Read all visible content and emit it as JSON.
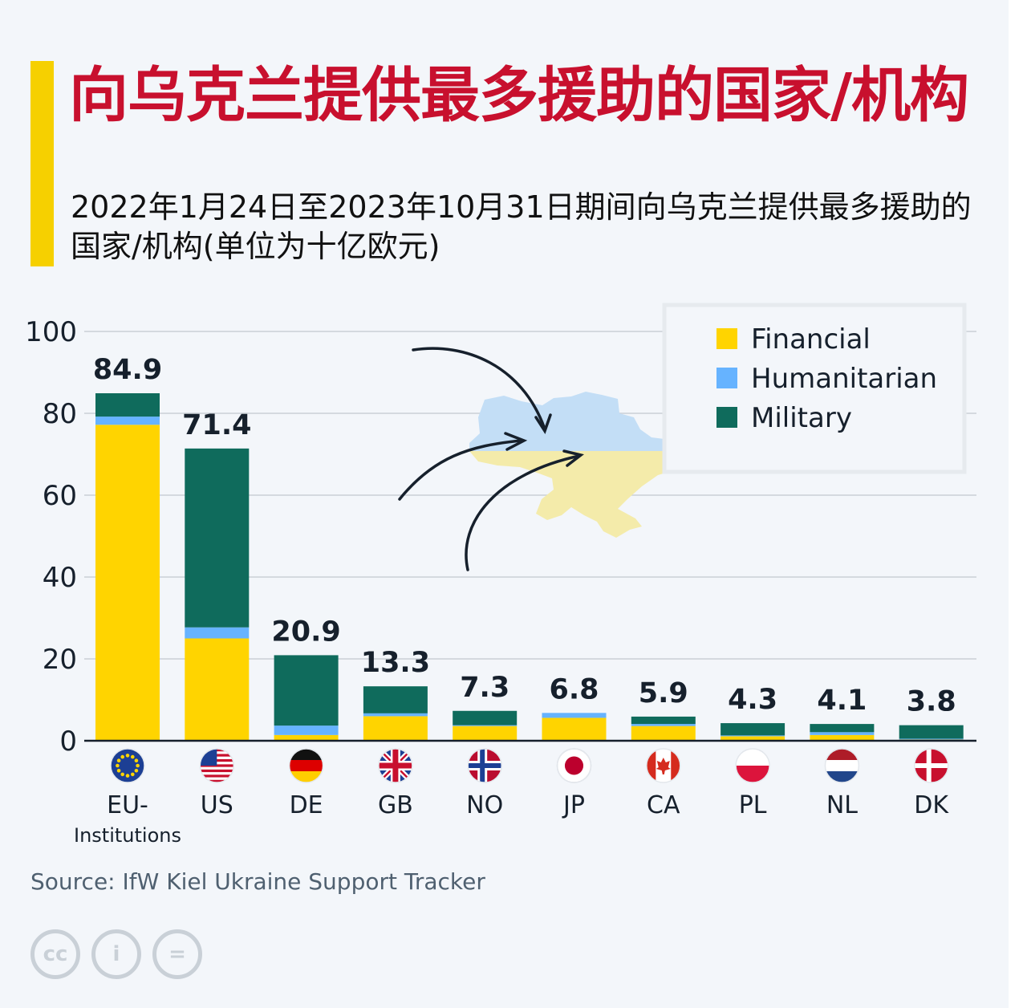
{
  "header": {
    "title": "向乌克兰提供最多援助的国家/机构",
    "subtitle": "2022年1月24日至2023年10月31日期间向乌克兰提供最多援助的国家/机构(单位为十亿欧元)"
  },
  "chart_data": {
    "type": "bar",
    "stacked": true,
    "categories": [
      "EU-Institutions",
      "US",
      "DE",
      "GB",
      "NO",
      "JP",
      "CA",
      "PL",
      "NL",
      "DK"
    ],
    "category_labels": [
      [
        "EU-",
        "Institutions"
      ],
      [
        "US"
      ],
      [
        "DE"
      ],
      [
        "GB"
      ],
      [
        "NO"
      ],
      [
        "JP"
      ],
      [
        "CA"
      ],
      [
        "PL"
      ],
      [
        "NL"
      ],
      [
        "DK"
      ]
    ],
    "flags": [
      "eu-flag-icon",
      "us-flag-icon",
      "de-flag-icon",
      "gb-flag-icon",
      "no-flag-icon",
      "jp-flag-icon",
      "ca-flag-icon",
      "pl-flag-icon",
      "nl-flag-icon",
      "dk-flag-icon"
    ],
    "totals": [
      84.9,
      71.4,
      20.9,
      13.3,
      7.3,
      6.8,
      5.9,
      4.3,
      4.1,
      3.8
    ],
    "total_labels": [
      "84.9",
      "71.4",
      "20.9",
      "13.3",
      "7.3",
      "6.8",
      "5.9",
      "4.3",
      "4.1",
      "3.8"
    ],
    "series": [
      {
        "name": "Financial",
        "color": "#ffd400",
        "values": [
          77.2,
          25.0,
          1.4,
          6.0,
          3.6,
          5.6,
          3.6,
          1.1,
          1.4,
          0.3
        ]
      },
      {
        "name": "Humanitarian",
        "color": "#66b3ff",
        "values": [
          2.0,
          2.7,
          2.3,
          0.7,
          0.2,
          1.2,
          0.5,
          0.2,
          0.7,
          0.2
        ]
      },
      {
        "name": "Military",
        "color": "#0f6b5c",
        "values": [
          5.7,
          43.7,
          17.2,
          6.6,
          3.5,
          0.0,
          1.8,
          3.0,
          2.0,
          3.3
        ]
      }
    ],
    "ylim": [
      0,
      100
    ],
    "yticks": [
      0,
      20,
      40,
      60,
      80,
      100
    ],
    "grid": true,
    "legend_position": "top-right",
    "decoration": "ukraine-map-with-arrows-icon"
  },
  "footer": {
    "source": "Source: IfW Kiel Ukraine Support Tracker",
    "license_icons": [
      "cc-icon",
      "by-icon",
      "nd-icon"
    ],
    "license_text": [
      "cc",
      "i",
      "="
    ]
  }
}
